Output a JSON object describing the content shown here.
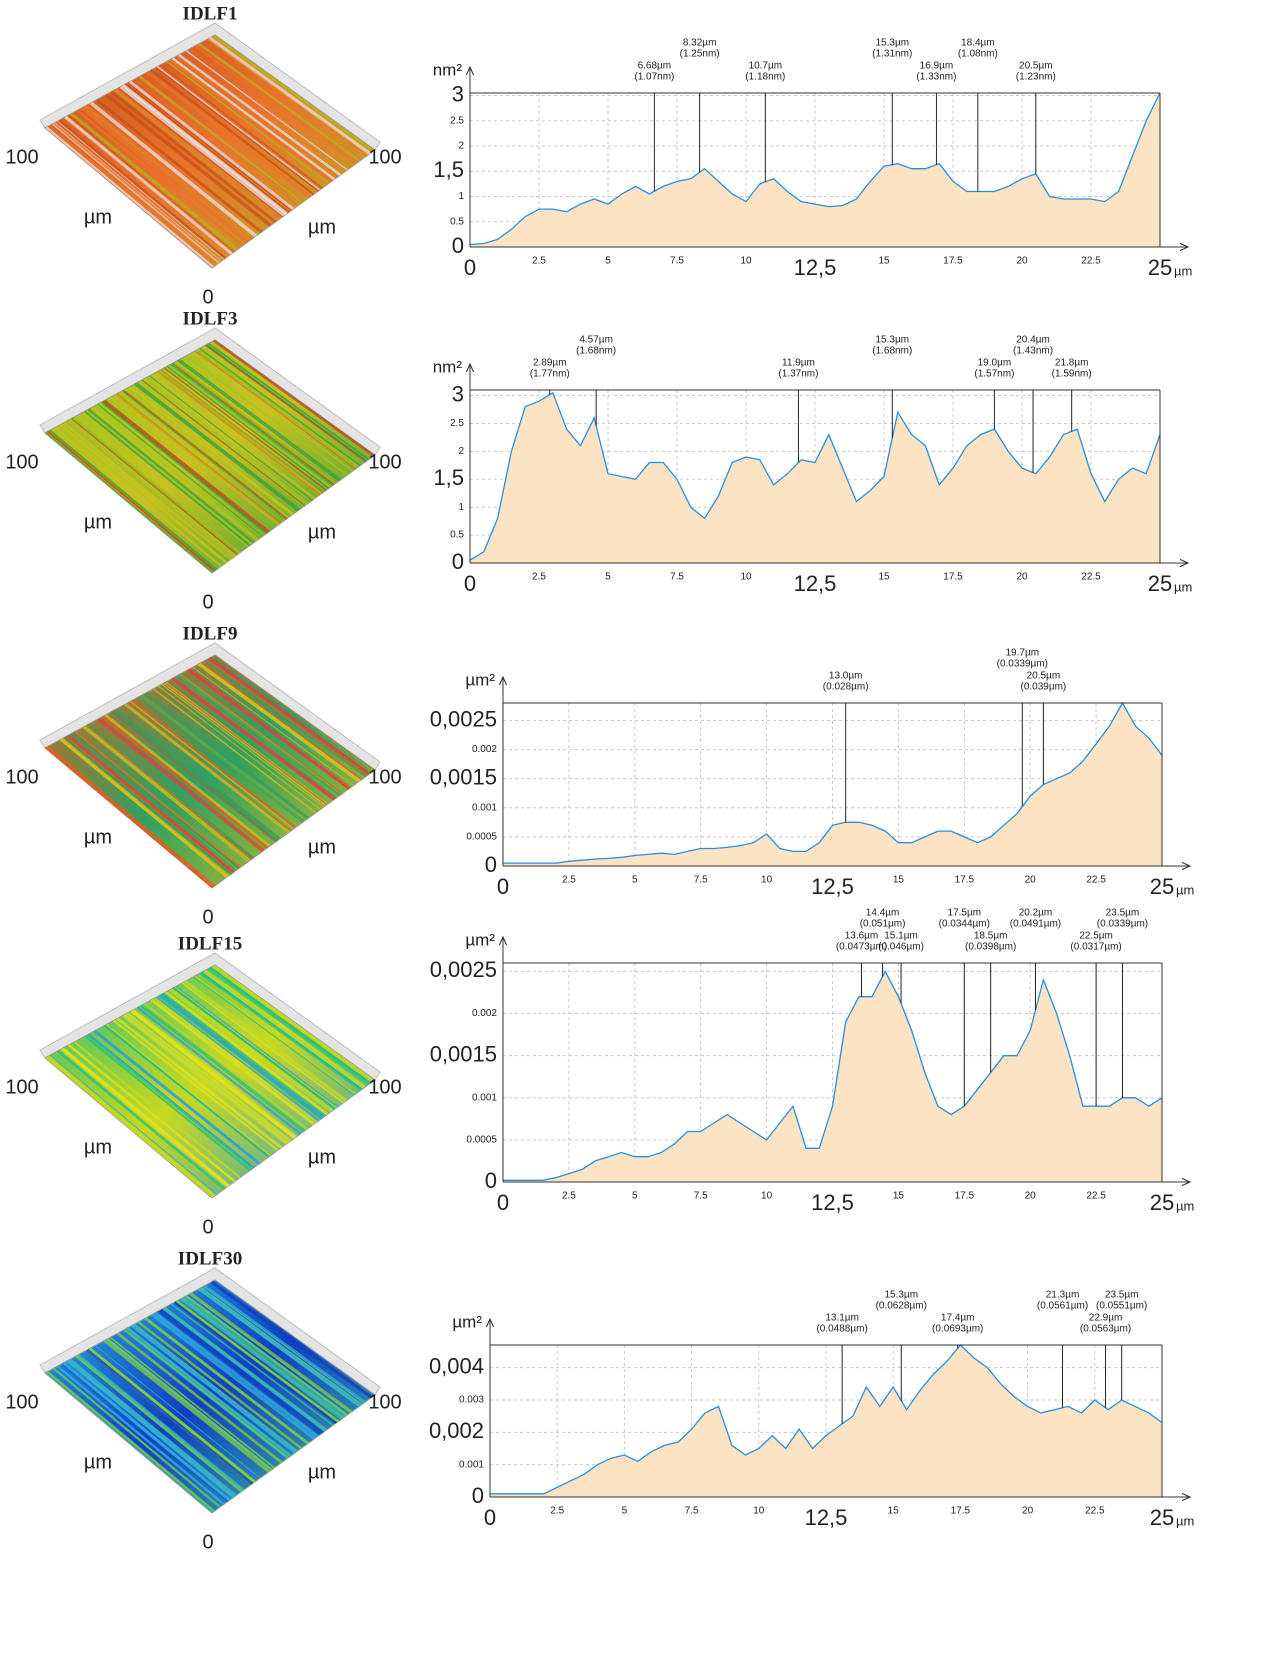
{
  "chart_data": [
    {
      "type": "area",
      "title": "IDLF1",
      "y_unit": "nm²",
      "x_unit": "µm",
      "surface_labels": [
        "100",
        "µm",
        "100",
        "µm",
        "0"
      ],
      "surface_colors": [
        "#c8501a",
        "#e8742c",
        "#b8b020",
        "#f0e0e0"
      ],
      "fill_color": "#fbe3c4",
      "line_color": "#2a8ee0",
      "grid": true,
      "xlim": [
        0,
        25
      ],
      "ylim": [
        0,
        3.05
      ],
      "xticks": [
        0,
        2.5,
        5,
        7.5,
        10,
        {
          "value": 12.5,
          "label": "12,5"
        },
        15,
        17.5,
        20,
        22.5,
        25
      ],
      "yticks": [
        0,
        0.5,
        1,
        {
          "value": 1.5,
          "label": "1,5"
        },
        2,
        2.5,
        3
      ],
      "x": [
        0,
        0.5,
        1,
        1.5,
        2,
        2.5,
        3,
        3.5,
        4,
        4.5,
        5,
        5.5,
        6,
        6.5,
        7,
        7.5,
        8,
        8.5,
        9,
        9.5,
        10,
        10.5,
        11,
        11.5,
        12,
        12.5,
        13,
        13.5,
        14,
        14.5,
        15,
        15.5,
        16,
        16.5,
        17,
        17.5,
        18,
        18.5,
        19,
        19.5,
        20,
        20.5,
        21,
        21.5,
        22,
        22.5,
        23,
        23.5,
        24,
        24.5,
        25
      ],
      "values": [
        0.05,
        0.07,
        0.15,
        0.35,
        0.6,
        0.75,
        0.75,
        0.7,
        0.85,
        0.95,
        0.85,
        1.05,
        1.2,
        1.05,
        1.2,
        1.3,
        1.35,
        1.55,
        1.3,
        1.05,
        0.9,
        1.25,
        1.35,
        1.1,
        0.9,
        0.85,
        0.8,
        0.82,
        0.95,
        1.3,
        1.6,
        1.65,
        1.55,
        1.55,
        1.65,
        1.3,
        1.1,
        1.1,
        1.1,
        1.2,
        1.35,
        1.45,
        1.0,
        0.95,
        0.95,
        0.95,
        0.9,
        1.1,
        1.8,
        2.5,
        3.05
      ],
      "annotations": [
        {
          "x": 6.68,
          "label": "6.68µm",
          "sublabel": "(1.07nm)"
        },
        {
          "x": 8.32,
          "label": "8.32µm",
          "sublabel": "(1.25nm)"
        },
        {
          "x": 10.7,
          "label": "10.7µm",
          "sublabel": "(1.18nm)"
        },
        {
          "x": 15.3,
          "label": "15.3µm",
          "sublabel": "(1.31nm)"
        },
        {
          "x": 16.9,
          "label": "16.9µm",
          "sublabel": "(1.33nm)"
        },
        {
          "x": 18.4,
          "label": "18.4µm",
          "sublabel": "(1.08nm)"
        },
        {
          "x": 20.5,
          "label": "20.5µm",
          "sublabel": "(1.23nm)"
        }
      ]
    },
    {
      "type": "area",
      "title": "IDLF3",
      "y_unit": "nm²",
      "x_unit": "µm",
      "surface_labels": [
        "100",
        "µm",
        "100",
        "µm",
        "0"
      ],
      "surface_colors": [
        "#9ac820",
        "#c8c020",
        "#30a040",
        "#c04020"
      ],
      "fill_color": "#fbe3c4",
      "line_color": "#2a8ee0",
      "grid": true,
      "xlim": [
        0,
        25
      ],
      "ylim": [
        0,
        3.1
      ],
      "xticks": [
        0,
        2.5,
        5,
        7.5,
        10,
        {
          "value": 12.5,
          "label": "12,5"
        },
        15,
        17.5,
        20,
        22.5,
        25
      ],
      "yticks": [
        0,
        0.5,
        1,
        {
          "value": 1.5,
          "label": "1,5"
        },
        2,
        2.5,
        3
      ],
      "x": [
        0,
        0.5,
        1,
        1.5,
        2,
        2.5,
        3,
        3.5,
        4,
        4.5,
        5,
        5.5,
        6,
        6.5,
        7,
        7.5,
        8,
        8.5,
        9,
        9.5,
        10,
        10.5,
        11,
        11.5,
        12,
        12.5,
        13,
        13.5,
        14,
        14.5,
        15,
        15.5,
        16,
        16.5,
        17,
        17.5,
        18,
        18.5,
        19,
        19.5,
        20,
        20.5,
        21,
        21.5,
        22,
        22.5,
        23,
        23.5,
        24,
        24.5,
        25
      ],
      "values": [
        0.05,
        0.2,
        0.8,
        2.0,
        2.8,
        2.9,
        3.05,
        2.4,
        2.1,
        2.6,
        1.6,
        1.55,
        1.5,
        1.8,
        1.8,
        1.5,
        1.0,
        0.8,
        1.2,
        1.8,
        1.9,
        1.85,
        1.4,
        1.6,
        1.85,
        1.8,
        2.3,
        1.7,
        1.1,
        1.3,
        1.55,
        2.7,
        2.3,
        2.1,
        1.4,
        1.7,
        2.1,
        2.3,
        2.4,
        2.0,
        1.7,
        1.6,
        1.9,
        2.3,
        2.4,
        1.6,
        1.1,
        1.5,
        1.7,
        1.6,
        2.3
      ],
      "annotations": [
        {
          "x": 2.89,
          "label": "2.89µm",
          "sublabel": "(1.77nm)"
        },
        {
          "x": 4.57,
          "label": "4.57µm",
          "sublabel": "(1.68nm)"
        },
        {
          "x": 11.9,
          "label": "11.9µm",
          "sublabel": "(1.37nm)"
        },
        {
          "x": 15.3,
          "label": "15.3µm",
          "sublabel": "(1.68nm)"
        },
        {
          "x": 19.0,
          "label": "19.0µm",
          "sublabel": "(1.57nm)"
        },
        {
          "x": 20.4,
          "label": "20.4µm",
          "sublabel": "(1.43nm)"
        },
        {
          "x": 21.8,
          "label": "21.8µm",
          "sublabel": "(1.59nm)"
        }
      ]
    },
    {
      "type": "area",
      "title": "IDLF9",
      "y_unit": "µm²",
      "x_unit": "µm",
      "surface_labels": [
        "100",
        "µm",
        "100",
        "µm",
        "0"
      ],
      "surface_colors": [
        "#e06020",
        "#30a060",
        "#d0c020",
        "#e04040"
      ],
      "fill_color": "#fbe3c4",
      "line_color": "#2a8ee0",
      "grid": true,
      "xlim": [
        0,
        25
      ],
      "ylim": [
        0,
        0.0028
      ],
      "xticks": [
        0,
        2.5,
        5,
        7.5,
        10,
        {
          "value": 12.5,
          "label": "12,5"
        },
        15,
        17.5,
        20,
        22.5,
        25
      ],
      "yticks": [
        0,
        0.0005,
        0.001,
        {
          "value": 0.0015,
          "label": "0,0015"
        },
        0.002,
        {
          "value": 0.0025,
          "label": "0,0025"
        }
      ],
      "x": [
        0,
        0.5,
        1,
        1.5,
        2,
        2.5,
        3,
        3.5,
        4,
        4.5,
        5,
        5.5,
        6,
        6.5,
        7,
        7.5,
        8,
        8.5,
        9,
        9.5,
        10,
        10.5,
        11,
        11.5,
        12,
        12.5,
        13,
        13.5,
        14,
        14.5,
        15,
        15.5,
        16,
        16.5,
        17,
        17.5,
        18,
        18.5,
        19,
        19.5,
        20,
        20.5,
        21,
        21.5,
        22,
        22.5,
        23,
        23.5,
        24,
        24.5,
        25
      ],
      "values": [
        5e-05,
        5e-05,
        5e-05,
        5e-05,
        5e-05,
        8e-05,
        0.0001,
        0.00012,
        0.00013,
        0.00015,
        0.00018,
        0.0002,
        0.00022,
        0.0002,
        0.00025,
        0.0003,
        0.0003,
        0.00032,
        0.00035,
        0.0004,
        0.00055,
        0.0003,
        0.00025,
        0.00025,
        0.0004,
        0.0007,
        0.00075,
        0.00075,
        0.0007,
        0.0006,
        0.0004,
        0.0004,
        0.0005,
        0.0006,
        0.0006,
        0.0005,
        0.0004,
        0.0005,
        0.0007,
        0.0009,
        0.0012,
        0.0014,
        0.0015,
        0.0016,
        0.0018,
        0.0021,
        0.0024,
        0.0028,
        0.0024,
        0.0022,
        0.0019
      ],
      "annotations": [
        {
          "x": 13.0,
          "label": "13.0µm",
          "sublabel": "(0.028µm)"
        },
        {
          "x": 19.7,
          "label": "19.7µm",
          "sublabel": "(0.0339µm)"
        },
        {
          "x": 20.5,
          "label": "20.5µm",
          "sublabel": "(0.039µm)"
        }
      ]
    },
    {
      "type": "area",
      "title": "IDLF15",
      "y_unit": "µm²",
      "x_unit": "µm",
      "surface_labels": [
        "100",
        "µm",
        "100",
        "µm",
        "0"
      ],
      "surface_colors": [
        "#20c080",
        "#c8d820",
        "#30a0d0",
        "#e0e020"
      ],
      "fill_color": "#fbe3c4",
      "line_color": "#2a8ee0",
      "grid": true,
      "xlim": [
        0,
        25
      ],
      "ylim": [
        0,
        0.0026
      ],
      "xticks": [
        0,
        2.5,
        5,
        7.5,
        10,
        {
          "value": 12.5,
          "label": "12,5"
        },
        15,
        17.5,
        20,
        22.5,
        25
      ],
      "yticks": [
        0,
        0.0005,
        0.001,
        {
          "value": 0.0015,
          "label": "0,0015"
        },
        0.002,
        {
          "value": 0.0025,
          "label": "0,0025"
        }
      ],
      "x": [
        0,
        0.5,
        1,
        1.5,
        2,
        2.5,
        3,
        3.5,
        4,
        4.5,
        5,
        5.5,
        6,
        6.5,
        7,
        7.5,
        8,
        8.5,
        9,
        9.5,
        10,
        10.5,
        11,
        11.5,
        12,
        12.5,
        13,
        13.5,
        14,
        14.5,
        15,
        15.5,
        16,
        16.5,
        17,
        17.5,
        18,
        18.5,
        19,
        19.5,
        20,
        20.5,
        21,
        21.5,
        22,
        22.5,
        23,
        23.5,
        24,
        24.5,
        25
      ],
      "values": [
        2e-05,
        2e-05,
        2e-05,
        2e-05,
        5e-05,
        0.0001,
        0.00015,
        0.00025,
        0.0003,
        0.00035,
        0.0003,
        0.0003,
        0.00035,
        0.00045,
        0.0006,
        0.0006,
        0.0007,
        0.0008,
        0.0007,
        0.0006,
        0.0005,
        0.0007,
        0.0009,
        0.0004,
        0.0004,
        0.0009,
        0.0019,
        0.0022,
        0.0022,
        0.0025,
        0.0022,
        0.0018,
        0.0013,
        0.0009,
        0.0008,
        0.0009,
        0.0011,
        0.0013,
        0.0015,
        0.0015,
        0.0018,
        0.0024,
        0.002,
        0.0015,
        0.0009,
        0.0009,
        0.0009,
        0.001,
        0.001,
        0.0009,
        0.001
      ],
      "annotations": [
        {
          "x": 13.6,
          "label": "13.6µm",
          "sublabel": "(0.0473µm)"
        },
        {
          "x": 14.4,
          "label": "14.4µm",
          "sublabel": "(0.051µm)"
        },
        {
          "x": 15.1,
          "label": "15.1µm",
          "sublabel": "(0.046µm)"
        },
        {
          "x": 17.5,
          "label": "17.5µm",
          "sublabel": "(0.0344µm)"
        },
        {
          "x": 18.5,
          "label": "18.5µm",
          "sublabel": "(0.0398µm)"
        },
        {
          "x": 20.2,
          "label": "20.2µm",
          "sublabel": "(0.0491µm)"
        },
        {
          "x": 22.5,
          "label": "22.5µm",
          "sublabel": "(0.0317µm)"
        },
        {
          "x": 23.5,
          "label": "23.5µm",
          "sublabel": "(0.0339µm)"
        }
      ]
    },
    {
      "type": "area",
      "title": "IDLF30",
      "y_unit": "µm²",
      "x_unit": "µm",
      "surface_labels": [
        "100",
        "µm",
        "100",
        "µm",
        "0"
      ],
      "surface_colors": [
        "#30b0e0",
        "#1040c0",
        "#40c0a0",
        "#80d040"
      ],
      "fill_color": "#fbe3c4",
      "line_color": "#2a8ee0",
      "grid": true,
      "xlim": [
        0,
        25
      ],
      "ylim": [
        0,
        0.0047
      ],
      "xticks": [
        0,
        2.5,
        5,
        7.5,
        10,
        {
          "value": 12.5,
          "label": "12,5"
        },
        15,
        17.5,
        20,
        22.5,
        25
      ],
      "yticks": [
        0,
        0.001,
        {
          "value": 0.002,
          "label": "0,002"
        },
        0.003,
        {
          "value": 0.004,
          "label": "0,004"
        }
      ],
      "x": [
        0,
        0.5,
        1,
        1.5,
        2,
        2.5,
        3,
        3.5,
        4,
        4.5,
        5,
        5.5,
        6,
        6.5,
        7,
        7.5,
        8,
        8.5,
        9,
        9.5,
        10,
        10.5,
        11,
        11.5,
        12,
        12.5,
        13,
        13.5,
        14,
        14.5,
        15,
        15.5,
        16,
        16.5,
        17,
        17.5,
        18,
        18.5,
        19,
        19.5,
        20,
        20.5,
        21,
        21.5,
        22,
        22.5,
        23,
        23.5,
        24,
        24.5,
        25
      ],
      "values": [
        0.0001,
        0.0001,
        0.0001,
        0.0001,
        0.0001,
        0.0003,
        0.0005,
        0.0007,
        0.001,
        0.0012,
        0.0013,
        0.0011,
        0.0014,
        0.0016,
        0.0017,
        0.0021,
        0.0026,
        0.0028,
        0.0016,
        0.0013,
        0.0015,
        0.0019,
        0.0015,
        0.0021,
        0.0015,
        0.0019,
        0.0022,
        0.0025,
        0.0034,
        0.0028,
        0.0034,
        0.0027,
        0.0033,
        0.0038,
        0.0042,
        0.0047,
        0.0043,
        0.004,
        0.0035,
        0.0031,
        0.0028,
        0.0026,
        0.0027,
        0.0028,
        0.0026,
        0.003,
        0.0027,
        0.003,
        0.0028,
        0.0026,
        0.0023
      ],
      "annotations": [
        {
          "x": 13.1,
          "label": "13.1µm",
          "sublabel": "(0.0488µm)"
        },
        {
          "x": 15.3,
          "label": "15.3µm",
          "sublabel": "(0.0628µm)"
        },
        {
          "x": 17.4,
          "label": "17.4µm",
          "sublabel": "(0.0693µm)"
        },
        {
          "x": 21.3,
          "label": "21.3µm",
          "sublabel": "(0.0561µm)"
        },
        {
          "x": 22.9,
          "label": "22.9µm",
          "sublabel": "(0.0563µm)"
        },
        {
          "x": 23.5,
          "label": "23.5µm",
          "sublabel": "(0.0551µm)"
        }
      ]
    }
  ]
}
